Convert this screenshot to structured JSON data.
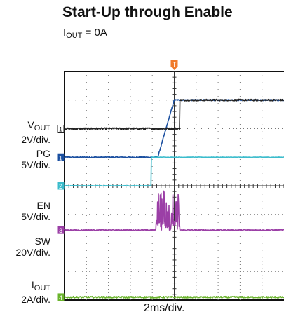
{
  "title": "Start-Up through Enable",
  "subtitle": {
    "main": "I",
    "sub": "OUT",
    "rest": " = 0A"
  },
  "xlabel": "2ms/div.",
  "chart_data": {
    "type": "line",
    "title": "Start-Up through Enable",
    "subtitle": "IOUT = 0A",
    "xlabel": "2ms/div.",
    "time_per_div_ms": 2,
    "x_divisions": 10,
    "y_divisions": 8,
    "grid": true,
    "channels": [
      {
        "name": "VOUT",
        "marker": "1",
        "scale": "2V/div.",
        "color": "#1a4fa0",
        "ground_div": 5.0,
        "start_ms": 8.5,
        "rise_ms": 1.5,
        "final_div": 2.0,
        "noise_div": 0.02
      },
      {
        "name": "PG",
        "marker": "1",
        "scale": "5V/div.",
        "color": "#222222",
        "ground_div": 6.0,
        "start_ms": 10.5,
        "rise_ms": 0.02,
        "final_div": 1.0,
        "noise_div": 0.03
      },
      {
        "name": "EN",
        "marker": "2",
        "scale": "5V/div.",
        "color": "#3bbccc",
        "ground_div": 4.0,
        "start_ms": 7.9,
        "rise_ms": 0.01,
        "final_div": 1.0,
        "noise_div": 0.01
      },
      {
        "name": "SW",
        "marker": "3",
        "scale": "20V/div.",
        "color": "#9b3fa6",
        "ground_div": 2.45,
        "start_ms": 8.6,
        "rise_ms": 0.0,
        "final_div": 0.0,
        "noise_div": 0.02,
        "burst_start_ms": 8.3,
        "burst_end_ms": 10.5,
        "burst_peak_div": 1.4
      },
      {
        "name": "IOUT",
        "marker": "4",
        "scale": "2A/div.",
        "color": "#6ab42c",
        "ground_div": 0.1,
        "start_ms": 0,
        "rise_ms": 0,
        "final_div": 0.0,
        "noise_div": 0.03
      }
    ],
    "trigger": {
      "marker": "T",
      "color": "#f07a2a",
      "time_ms": 10.0
    }
  },
  "labels": [
    {
      "main": "V",
      "sub": "OUT",
      "scale": "2V/div."
    },
    {
      "main": "PG",
      "sub": "",
      "scale": "5V/div."
    },
    {
      "main": "EN",
      "sub": "",
      "scale": "5V/div."
    },
    {
      "main": "SW",
      "sub": "",
      "scale": "20V/div."
    },
    {
      "main": "I",
      "sub": "OUT",
      "scale": "2A/div."
    }
  ]
}
